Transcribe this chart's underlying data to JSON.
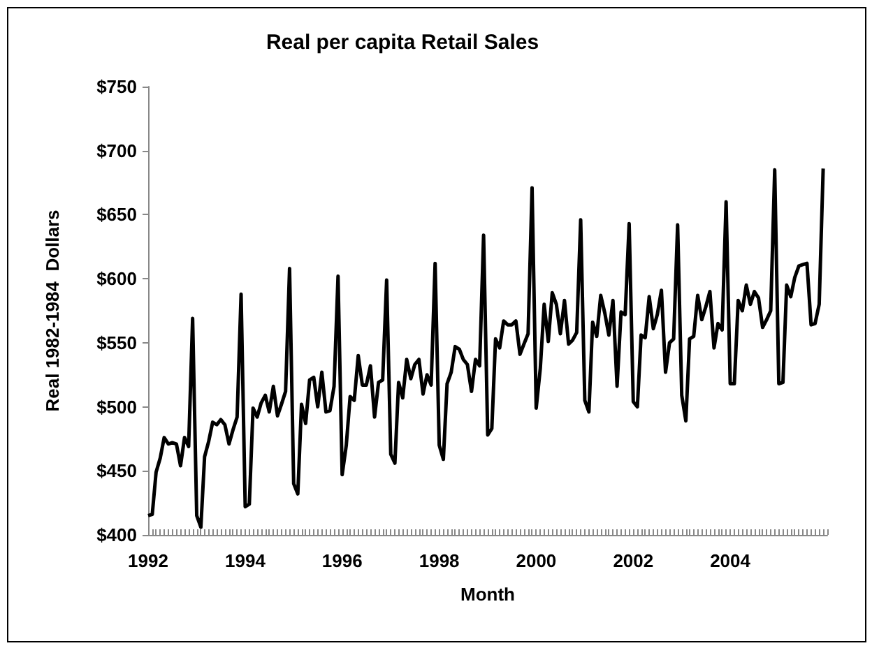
{
  "chart_data": {
    "type": "line",
    "title": "Real per capita Retail Sales",
    "xlabel": "Month",
    "ylabel": "Real 1982-1984  Dollars",
    "x": [
      "1992-01",
      "1992-02",
      "1992-03",
      "1992-04",
      "1992-05",
      "1992-06",
      "1992-07",
      "1992-08",
      "1992-09",
      "1992-10",
      "1992-11",
      "1992-12",
      "1993-01",
      "1993-02",
      "1993-03",
      "1993-04",
      "1993-05",
      "1993-06",
      "1993-07",
      "1993-08",
      "1993-09",
      "1993-10",
      "1993-11",
      "1993-12",
      "1994-01",
      "1994-02",
      "1994-03",
      "1994-04",
      "1994-05",
      "1994-06",
      "1994-07",
      "1994-08",
      "1994-09",
      "1994-10",
      "1994-11",
      "1994-12",
      "1995-01",
      "1995-02",
      "1995-03",
      "1995-04",
      "1995-05",
      "1995-06",
      "1995-07",
      "1995-08",
      "1995-09",
      "1995-10",
      "1995-11",
      "1995-12",
      "1996-01",
      "1996-02",
      "1996-03",
      "1996-04",
      "1996-05",
      "1996-06",
      "1996-07",
      "1996-08",
      "1996-09",
      "1996-10",
      "1996-11",
      "1996-12",
      "1997-01",
      "1997-02",
      "1997-03",
      "1997-04",
      "1997-05",
      "1997-06",
      "1997-07",
      "1997-08",
      "1997-09",
      "1997-10",
      "1997-11",
      "1997-12",
      "1998-01",
      "1998-02",
      "1998-03",
      "1998-04",
      "1998-05",
      "1998-06",
      "1998-07",
      "1998-08",
      "1998-09",
      "1998-10",
      "1998-11",
      "1998-12",
      "1999-01",
      "1999-02",
      "1999-03",
      "1999-04",
      "1999-05",
      "1999-06",
      "1999-07",
      "1999-08",
      "1999-09",
      "1999-10",
      "1999-11",
      "1999-12",
      "2000-01",
      "2000-02",
      "2000-03",
      "2000-04",
      "2000-05",
      "2000-06",
      "2000-07",
      "2000-08",
      "2000-09",
      "2000-10",
      "2000-11",
      "2000-12",
      "2001-01",
      "2001-02",
      "2001-03",
      "2001-04",
      "2001-05",
      "2001-06",
      "2001-07",
      "2001-08",
      "2001-09",
      "2001-10",
      "2001-11",
      "2001-12",
      "2002-01",
      "2002-02",
      "2002-03",
      "2002-04",
      "2002-05",
      "2002-06",
      "2002-07",
      "2002-08",
      "2002-09",
      "2002-10",
      "2002-11",
      "2002-12",
      "2003-01",
      "2003-02",
      "2003-03",
      "2003-04",
      "2003-05",
      "2003-06",
      "2003-07",
      "2003-08",
      "2003-09",
      "2003-10",
      "2003-11",
      "2003-12",
      "2004-01",
      "2004-02",
      "2004-03",
      "2004-04",
      "2004-05",
      "2004-06",
      "2004-07",
      "2004-08",
      "2004-09",
      "2004-10",
      "2004-11",
      "2004-12",
      "2005-01",
      "2005-02",
      "2005-03",
      "2005-04",
      "2005-05",
      "2005-06",
      "2005-07",
      "2005-08",
      "2005-09",
      "2005-10",
      "2005-11",
      "2005-12"
    ],
    "series": [
      {
        "color": "#000000",
        "values": [
          415,
          416,
          449,
          460,
          476,
          471,
          472,
          471,
          454,
          476,
          469,
          569,
          415,
          406,
          461,
          473,
          488,
          486,
          490,
          486,
          471,
          482,
          492,
          588,
          422,
          424,
          499,
          492,
          503,
          509,
          496,
          516,
          493,
          502,
          512,
          608,
          440,
          432,
          502,
          487,
          521,
          523,
          500,
          527,
          496,
          497,
          516,
          602,
          447,
          470,
          508,
          505,
          540,
          517,
          517,
          532,
          492,
          519,
          521,
          599,
          463,
          456,
          519,
          507,
          537,
          522,
          533,
          537,
          510,
          525,
          517,
          612,
          470,
          459,
          518,
          527,
          547,
          545,
          537,
          533,
          512,
          537,
          532,
          634,
          478,
          483,
          553,
          546,
          567,
          564,
          564,
          567,
          541,
          549,
          557,
          671,
          499,
          530,
          580,
          551,
          589,
          580,
          557,
          583,
          549,
          552,
          558,
          646,
          505,
          496,
          566,
          555,
          587,
          573,
          556,
          583,
          516,
          574,
          572,
          643,
          504,
          500,
          556,
          554,
          586,
          561,
          572,
          591,
          527,
          550,
          553,
          642,
          509,
          489,
          553,
          555,
          587,
          568,
          578,
          590,
          546,
          565,
          560,
          660,
          518,
          518,
          583,
          575,
          595,
          580,
          590,
          585,
          562,
          568,
          575,
          685,
          518,
          519,
          595,
          586,
          601,
          610,
          611,
          612,
          564,
          565,
          580,
          686
        ]
      }
    ],
    "xlim": [
      "1992-01",
      "2006-01"
    ],
    "xticks": [
      "1992",
      "1994",
      "1996",
      "1998",
      "2000",
      "2002",
      "2004"
    ],
    "ylim": [
      400,
      750
    ],
    "yticks": [
      {
        "value": 400,
        "label": "$400"
      },
      {
        "value": 450,
        "label": "$450"
      },
      {
        "value": 500,
        "label": "$500"
      },
      {
        "value": 550,
        "label": "$550"
      },
      {
        "value": 600,
        "label": "$600"
      },
      {
        "value": 650,
        "label": "$650"
      },
      {
        "value": 700,
        "label": "$700"
      },
      {
        "value": 750,
        "label": "$750"
      }
    ],
    "grid": false,
    "marker": "none",
    "line_style": "solid"
  }
}
